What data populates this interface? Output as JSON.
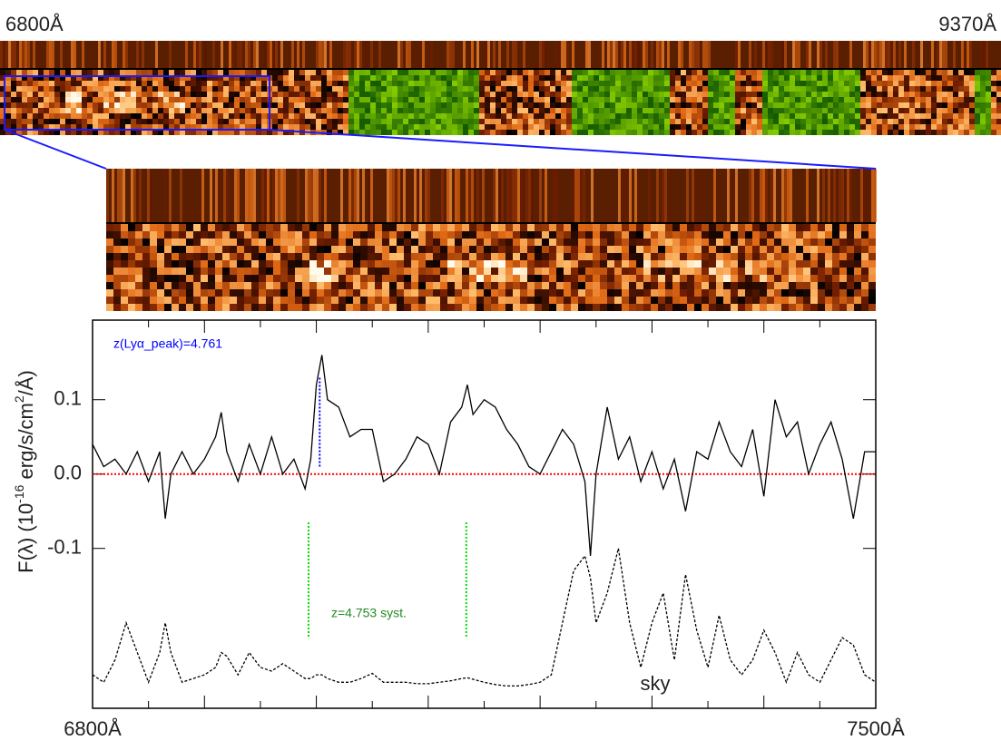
{
  "strip": {
    "left_label": "6800Å",
    "right_label": "9370Å"
  },
  "chart_data": {
    "type": "line",
    "ylabel_parts": [
      "F(λ) (10",
      "-16",
      " erg/s/cm",
      "2",
      "/Å)"
    ],
    "xlim": [
      6800,
      7500
    ],
    "ylim": [
      -0.315,
      0.207
    ],
    "xticks": [
      {
        "value": 6800,
        "label": "6800Å"
      },
      {
        "value": 7500,
        "label": "7500Å"
      }
    ],
    "xticks_minor": [
      6850,
      6900,
      6950,
      7000,
      7050,
      7100,
      7150,
      7200,
      7250,
      7300,
      7350,
      7400,
      7450
    ],
    "yticks": [
      {
        "value": 0.1,
        "label": "0.1"
      },
      {
        "value": 0,
        "label": "0.0"
      },
      -0.1
    ],
    "hline": {
      "value": 0,
      "color": "#ff0000"
    },
    "x": [
      6800,
      6810,
      6820,
      6830,
      6840,
      6850,
      6860,
      6865,
      6870,
      6880,
      6890,
      6900,
      6910,
      6915,
      6920,
      6930,
      6940,
      6950,
      6960,
      6970,
      6980,
      6990,
      6995,
      7000,
      7005,
      7010,
      7020,
      7030,
      7040,
      7050,
      7060,
      7070,
      7080,
      7090,
      7100,
      7110,
      7120,
      7130,
      7135,
      7140,
      7150,
      7160,
      7170,
      7180,
      7190,
      7200,
      7210,
      7220,
      7230,
      7240,
      7245,
      7250,
      7260,
      7270,
      7280,
      7290,
      7300,
      7310,
      7320,
      7330,
      7340,
      7350,
      7360,
      7370,
      7380,
      7390,
      7400,
      7410,
      7420,
      7430,
      7440,
      7450,
      7460,
      7470,
      7480,
      7490,
      7500
    ],
    "series": [
      {
        "color": "#000000",
        "dash": "none",
        "values": [
          0.04,
          0.01,
          0.02,
          0.0,
          0.03,
          -0.01,
          0.03,
          -0.06,
          0.0,
          0.03,
          0.0,
          0.02,
          0.05,
          0.083,
          0.03,
          -0.01,
          0.04,
          0.0,
          0.05,
          0.0,
          0.02,
          -0.02,
          0.02,
          0.12,
          0.16,
          0.1,
          0.09,
          0.05,
          0.06,
          0.06,
          -0.01,
          0.0,
          0.02,
          0.05,
          0.04,
          0.0,
          0.07,
          0.09,
          0.12,
          0.08,
          0.1,
          0.09,
          0.06,
          0.04,
          0.01,
          0.0,
          0.03,
          0.06,
          0.04,
          -0.01,
          -0.11,
          0.0,
          0.09,
          0.02,
          0.05,
          -0.01,
          0.03,
          -0.02,
          0.02,
          -0.05,
          0.03,
          0.02,
          0.07,
          0.03,
          0.01,
          0.06,
          -0.03,
          0.1,
          0.05,
          0.07,
          0.0,
          0.04,
          0.07,
          0.02,
          -0.06,
          0.03,
          0.03
        ]
      },
      {
        "name": "sky",
        "color": "#000000",
        "dash": "3,2",
        "values": [
          -0.27,
          -0.28,
          -0.25,
          -0.2,
          -0.24,
          -0.28,
          -0.24,
          -0.2,
          -0.24,
          -0.28,
          -0.275,
          -0.27,
          -0.26,
          -0.24,
          -0.245,
          -0.27,
          -0.24,
          -0.26,
          -0.265,
          -0.255,
          -0.265,
          -0.275,
          -0.275,
          -0.27,
          -0.27,
          -0.275,
          -0.28,
          -0.28,
          -0.275,
          -0.268,
          -0.28,
          -0.28,
          -0.28,
          -0.282,
          -0.282,
          -0.28,
          -0.278,
          -0.275,
          -0.274,
          -0.276,
          -0.28,
          -0.283,
          -0.285,
          -0.285,
          -0.283,
          -0.28,
          -0.27,
          -0.2,
          -0.13,
          -0.11,
          -0.14,
          -0.2,
          -0.16,
          -0.1,
          -0.2,
          -0.26,
          -0.2,
          -0.16,
          -0.25,
          -0.135,
          -0.21,
          -0.26,
          -0.19,
          -0.25,
          -0.27,
          -0.25,
          -0.21,
          -0.24,
          -0.28,
          -0.24,
          -0.27,
          -0.28,
          -0.25,
          -0.22,
          -0.23,
          -0.27,
          -0.28
        ]
      }
    ],
    "annotations": [
      {
        "text": "z(Lyα_peak)=4.761",
        "color": "#0000ff",
        "lines_x": [
          7003
        ],
        "y": [
          0.01,
          0.13
        ]
      },
      {
        "text": "z=4.753 syst.",
        "color": "#228b22",
        "line_color": "#00e000",
        "lines_x": [
          6993,
          7134
        ],
        "y": [
          -0.065,
          -0.22
        ]
      }
    ]
  }
}
